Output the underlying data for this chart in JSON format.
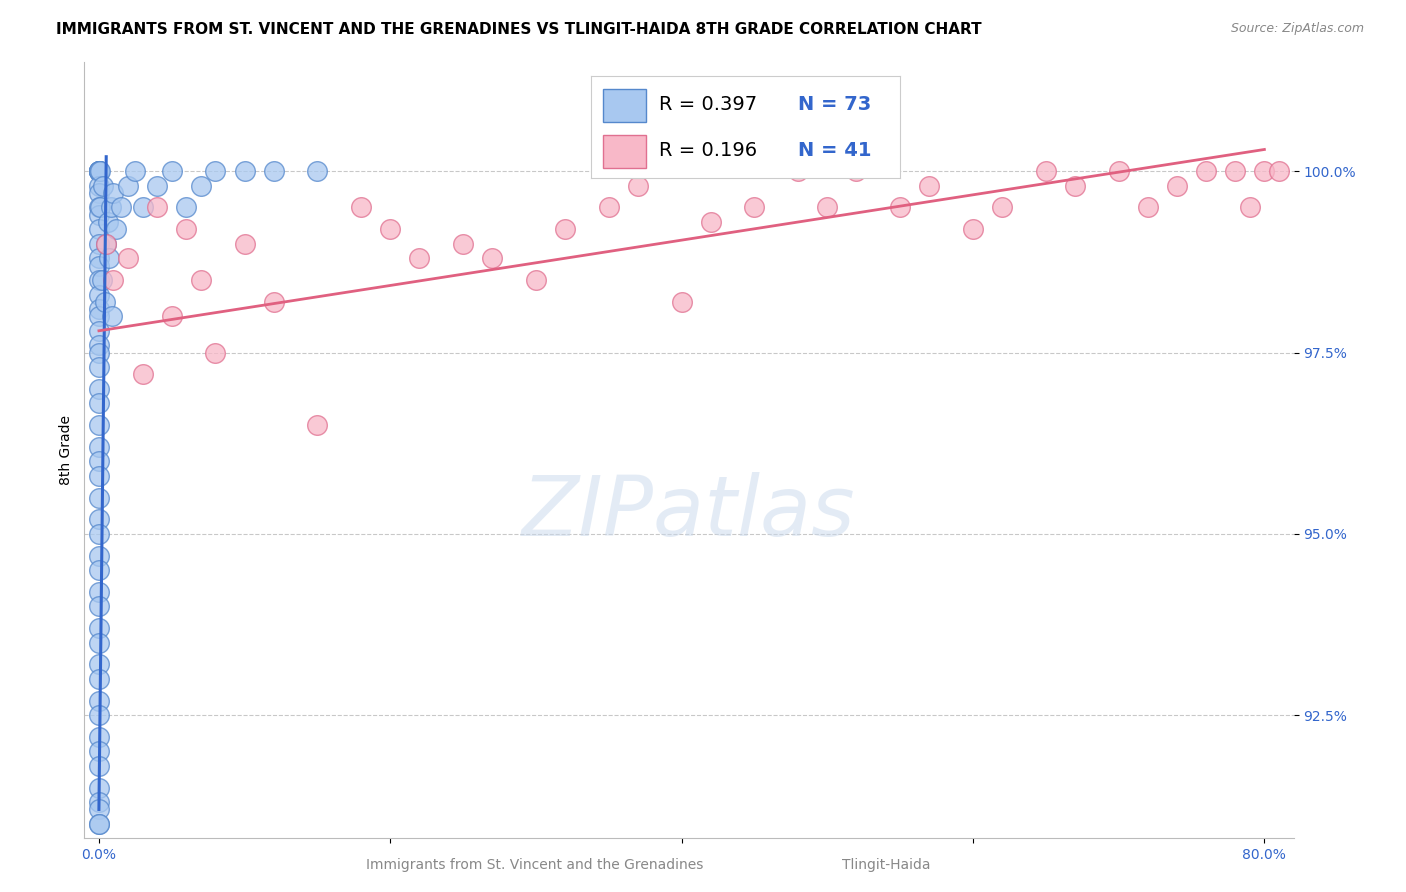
{
  "title": "IMMIGRANTS FROM ST. VINCENT AND THE GRENADINES VS TLINGIT-HAIDA 8TH GRADE CORRELATION CHART",
  "source": "Source: ZipAtlas.com",
  "xlabel_bottom": "Immigrants from St. Vincent and the Grenadines",
  "xlabel_bottom2": "Tlingit-Haida",
  "ylabel": "8th Grade",
  "xlim": [
    -1.0,
    82.0
  ],
  "ylim": [
    90.8,
    101.5
  ],
  "yticks": [
    92.5,
    95.0,
    97.5,
    100.0
  ],
  "ytick_labels": [
    "92.5%",
    "95.0%",
    "97.5%",
    "100.0%"
  ],
  "xtick_positions": [
    0.0,
    20.0,
    40.0,
    60.0,
    80.0
  ],
  "xtick_labels": [
    "0.0%",
    "",
    "",
    "",
    "80.0%"
  ],
  "R_blue": 0.397,
  "N_blue": 73,
  "R_pink": 0.196,
  "N_pink": 41,
  "blue_fill": "#A8C8F0",
  "blue_edge": "#5588CC",
  "pink_fill": "#F8B8C8",
  "pink_edge": "#E07090",
  "blue_line_color": "#3366CC",
  "pink_line_color": "#E06080",
  "background_color": "#FFFFFF",
  "grid_color": "#BBBBBB",
  "blue_scatter_x": [
    0.0,
    0.0,
    0.0,
    0.0,
    0.0,
    0.0,
    0.0,
    0.0,
    0.0,
    0.0,
    0.0,
    0.0,
    0.0,
    0.0,
    0.0,
    0.0,
    0.0,
    0.0,
    0.0,
    0.0,
    0.0,
    0.0,
    0.0,
    0.0,
    0.0,
    0.0,
    0.0,
    0.0,
    0.0,
    0.0,
    0.0,
    0.0,
    0.0,
    0.0,
    0.0,
    0.0,
    0.0,
    0.0,
    0.0,
    0.0,
    0.0,
    0.0,
    0.0,
    0.0,
    0.0,
    0.0,
    0.0,
    0.0,
    0.0,
    0.1,
    0.1,
    0.2,
    0.3,
    0.4,
    0.5,
    0.6,
    0.7,
    0.8,
    0.9,
    1.0,
    1.2,
    1.5,
    2.0,
    2.5,
    3.0,
    4.0,
    5.0,
    6.0,
    7.0,
    8.0,
    10.0,
    12.0,
    15.0
  ],
  "blue_scatter_y": [
    100.0,
    100.0,
    100.0,
    100.0,
    100.0,
    100.0,
    99.8,
    99.7,
    99.5,
    99.4,
    99.2,
    99.0,
    98.8,
    98.7,
    98.5,
    98.3,
    98.1,
    98.0,
    97.8,
    97.6,
    97.5,
    97.3,
    97.0,
    96.8,
    96.5,
    96.2,
    96.0,
    95.8,
    95.5,
    95.2,
    95.0,
    94.7,
    94.5,
    94.2,
    94.0,
    93.7,
    93.5,
    93.2,
    93.0,
    92.7,
    92.5,
    92.2,
    92.0,
    91.8,
    91.5,
    91.3,
    91.2,
    91.0,
    91.0,
    100.0,
    99.5,
    98.5,
    99.8,
    98.2,
    99.0,
    99.3,
    98.8,
    99.5,
    98.0,
    99.7,
    99.2,
    99.5,
    99.8,
    100.0,
    99.5,
    99.8,
    100.0,
    99.5,
    99.8,
    100.0,
    100.0,
    100.0,
    100.0
  ],
  "pink_scatter_x": [
    0.5,
    1.0,
    2.0,
    3.0,
    4.0,
    5.0,
    6.0,
    7.0,
    8.0,
    10.0,
    12.0,
    15.0,
    18.0,
    20.0,
    22.0,
    25.0,
    27.0,
    30.0,
    32.0,
    35.0,
    37.0,
    40.0,
    42.0,
    45.0,
    48.0,
    50.0,
    52.0,
    55.0,
    57.0,
    60.0,
    62.0,
    65.0,
    67.0,
    70.0,
    72.0,
    74.0,
    76.0,
    78.0,
    79.0,
    80.0,
    81.0
  ],
  "pink_scatter_y": [
    99.0,
    98.5,
    98.8,
    97.2,
    99.5,
    98.0,
    99.2,
    98.5,
    97.5,
    99.0,
    98.2,
    96.5,
    99.5,
    99.2,
    98.8,
    99.0,
    98.8,
    98.5,
    99.2,
    99.5,
    99.8,
    98.2,
    99.3,
    99.5,
    100.0,
    99.5,
    100.0,
    99.5,
    99.8,
    99.2,
    99.5,
    100.0,
    99.8,
    100.0,
    99.5,
    99.8,
    100.0,
    100.0,
    99.5,
    100.0,
    100.0
  ],
  "blue_line_x0": 0.0,
  "blue_line_y0": 91.2,
  "blue_line_x1": 0.5,
  "blue_line_y1": 100.2,
  "pink_line_x0": 0.0,
  "pink_line_y0": 97.8,
  "pink_line_x1": 80.0,
  "pink_line_y1": 100.3,
  "title_fontsize": 11,
  "source_fontsize": 9,
  "axis_label_fontsize": 10,
  "tick_fontsize": 10,
  "legend_fontsize": 14,
  "watermark_text": "ZIPatlas",
  "watermark_fontsize": 60
}
